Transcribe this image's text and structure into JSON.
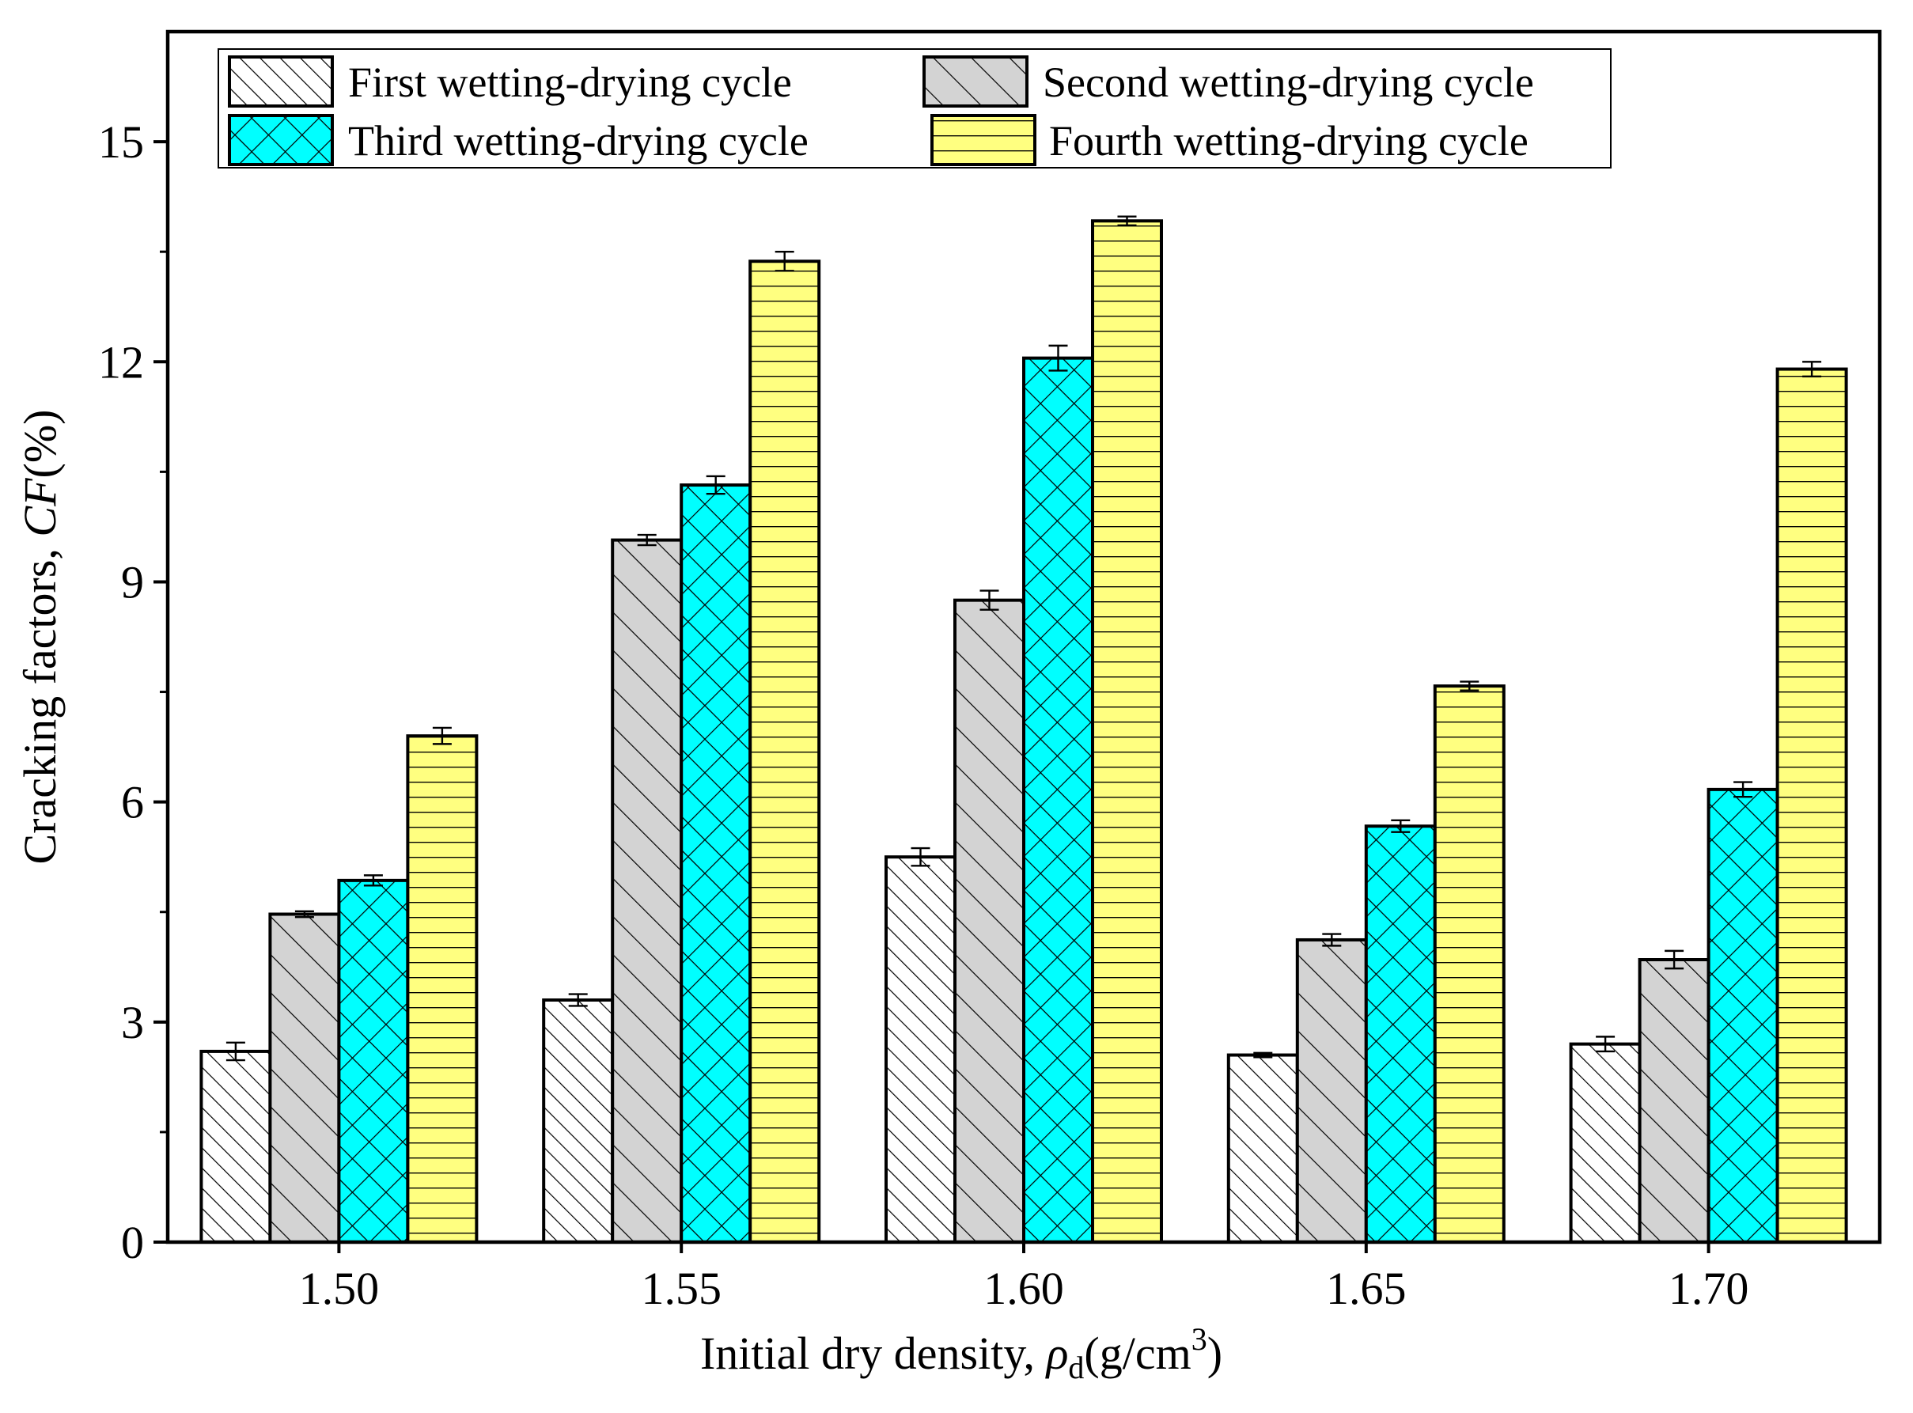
{
  "chart_data": {
    "type": "bar",
    "title": "",
    "xlabel": "Initial dry density, ",
    "xlabel_symbol": "ρ",
    "xlabel_subscript": "d",
    "xlabel_unit": "(g/cm",
    "xlabel_unit_sup": "3",
    "xlabel_unit_close": ")",
    "ylabel": "Cracking factors, ",
    "ylabel_symbol": "CF",
    "ylabel_unit": "(%)",
    "categories": [
      "1.50",
      "1.55",
      "1.60",
      "1.65",
      "1.70"
    ],
    "ylim": [
      0,
      16.5
    ],
    "yticks": [
      0,
      3,
      6,
      9,
      12,
      15
    ],
    "ytick_labels": [
      "0",
      "3",
      "6",
      "9",
      "12",
      "15"
    ],
    "minor_ytick_step": 1.5,
    "grid": false,
    "legend_position": "top-center",
    "series": [
      {
        "name": "First wetting-drying cycle",
        "pattern": "diagonal-hatch",
        "fill": "#ffffff",
        "values": [
          2.6,
          3.3,
          5.25,
          2.55,
          2.7
        ],
        "errors": [
          0.12,
          0.08,
          0.12,
          0.03,
          0.1
        ]
      },
      {
        "name": "Second wetting-drying cycle",
        "pattern": "diagonal-hatch-wide",
        "fill": "#d3d3d3",
        "values": [
          4.47,
          9.57,
          8.75,
          4.12,
          3.85
        ],
        "errors": [
          0.04,
          0.07,
          0.13,
          0.08,
          0.12
        ]
      },
      {
        "name": "Third wetting-drying cycle",
        "pattern": "crosshatch",
        "fill": "#00ffff",
        "values": [
          4.93,
          10.32,
          12.05,
          5.67,
          6.17
        ],
        "errors": [
          0.07,
          0.12,
          0.17,
          0.08,
          0.1
        ]
      },
      {
        "name": "Fourth wetting-drying cycle",
        "pattern": "horizontal-lines",
        "fill": "#ffff80",
        "values": [
          6.9,
          13.37,
          13.92,
          7.58,
          11.9
        ],
        "errors": [
          0.11,
          0.13,
          0.06,
          0.06,
          0.1
        ]
      }
    ]
  }
}
